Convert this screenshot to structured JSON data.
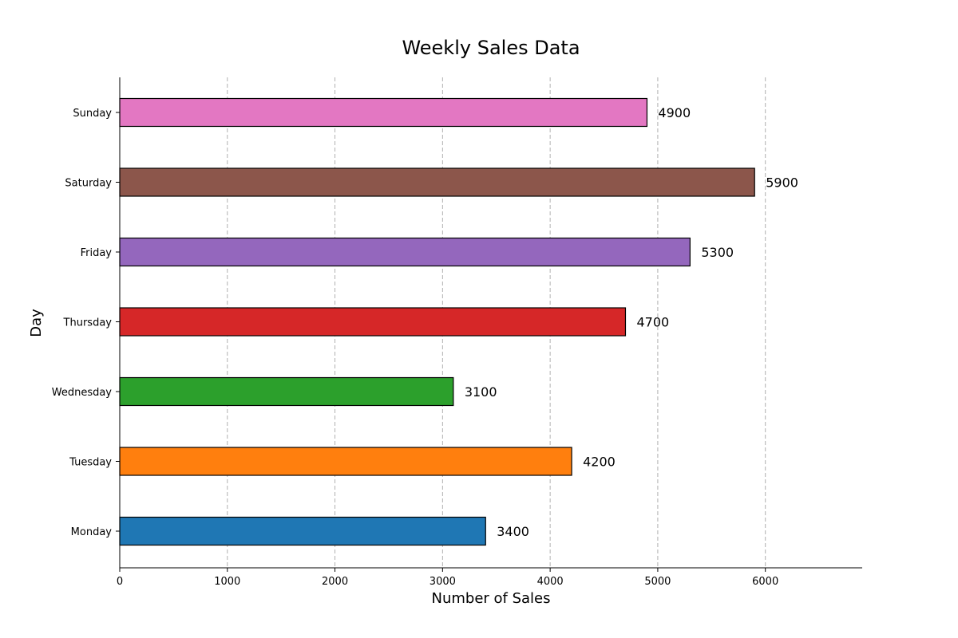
{
  "chart_data": {
    "type": "bar",
    "orientation": "horizontal",
    "title": "Weekly Sales Data",
    "xlabel": "Number of Sales",
    "ylabel": "Day",
    "categories": [
      "Monday",
      "Tuesday",
      "Wednesday",
      "Thursday",
      "Friday",
      "Saturday",
      "Sunday"
    ],
    "values": [
      3400,
      4200,
      3100,
      4700,
      5300,
      5900,
      4900
    ],
    "value_labels": [
      "3400",
      "4200",
      "3100",
      "4700",
      "5300",
      "5900",
      "4900"
    ],
    "colors": [
      "#1f77b4",
      "#ff7f0e",
      "#2ca02c",
      "#d62728",
      "#9467bd",
      "#8c564b",
      "#e377c2"
    ],
    "xlim": [
      0,
      6900
    ],
    "xticks": [
      0,
      1000,
      2000,
      3000,
      4000,
      5000,
      6000
    ],
    "xtick_labels": [
      "0",
      "1000",
      "2000",
      "3000",
      "4000",
      "5000",
      "6000"
    ],
    "grid": "x-major-dashed",
    "legend": "none"
  }
}
